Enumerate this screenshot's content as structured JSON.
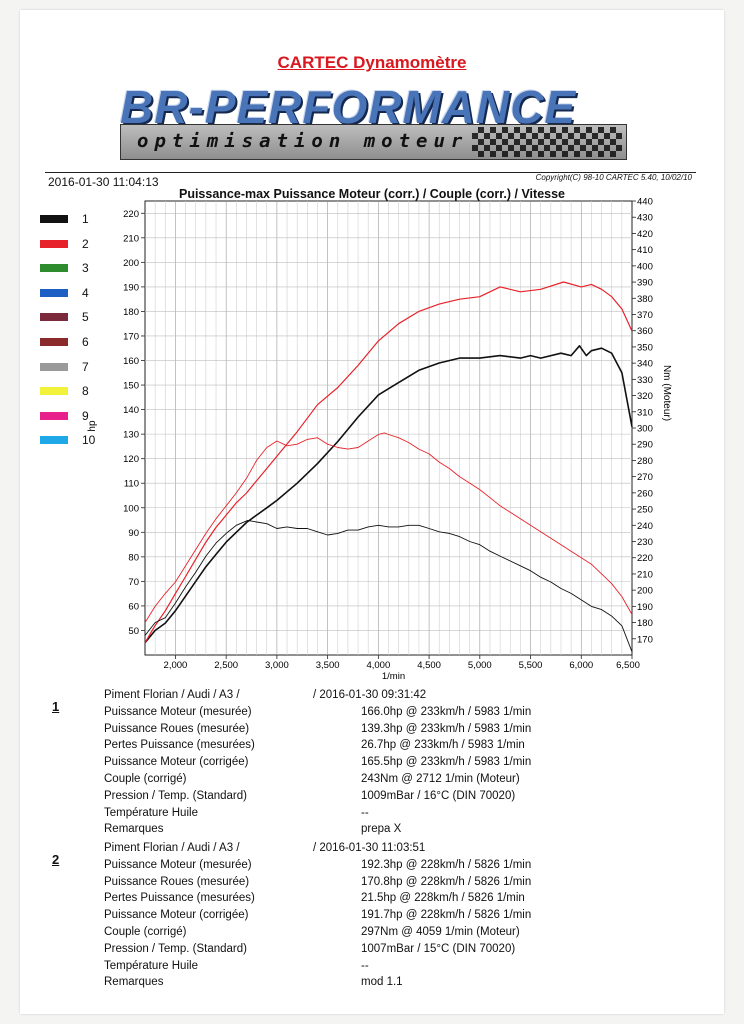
{
  "header": {
    "title": "CARTEC Dynamomètre",
    "logo_brand": "BR-PERFORMANCE",
    "logo_subtitle": "optimisation moteur",
    "timestamp": "2016-01-30 11:04:13",
    "copyright": "Copyright(C) 98-10 CARTEC 5.40, 10/02/10"
  },
  "legend": [
    {
      "label": "1",
      "color": "#111111"
    },
    {
      "label": "2",
      "color": "#e8222a"
    },
    {
      "label": "3",
      "color": "#2e8b2e"
    },
    {
      "label": "4",
      "color": "#1e5fc6"
    },
    {
      "label": "5",
      "color": "#7a2a3a"
    },
    {
      "label": "6",
      "color": "#8b2a2a"
    },
    {
      "label": "7",
      "color": "#9a9a9a"
    },
    {
      "label": "8",
      "color": "#f2f23a"
    },
    {
      "label": "9",
      "color": "#e8208c"
    },
    {
      "label": "10",
      "color": "#1ea8e8"
    }
  ],
  "chart_data": {
    "type": "line",
    "title": "Puissance-max Puissance Moteur (corr.) / Couple (corr.) / Vitesse",
    "xlabel": "1/min",
    "ylabel": "hp",
    "y2label": "Nm (Moteur)",
    "xlim": [
      1700,
      6500
    ],
    "ylim": [
      40,
      225
    ],
    "y2lim": [
      160,
      440
    ],
    "xticks": [
      2000,
      2500,
      3000,
      3500,
      4000,
      4500,
      5000,
      5500,
      6000,
      6500
    ],
    "xtick_labels": [
      "2,000",
      "2,500",
      "3,000",
      "3,500",
      "4,000",
      "4,500",
      "5,000",
      "5,500",
      "6,000",
      "6,500"
    ],
    "yticks": [
      50,
      60,
      70,
      80,
      90,
      100,
      110,
      120,
      130,
      140,
      150,
      160,
      170,
      180,
      190,
      200,
      210,
      220
    ],
    "y2ticks": [
      170,
      180,
      190,
      200,
      210,
      220,
      230,
      240,
      250,
      260,
      270,
      280,
      290,
      300,
      310,
      320,
      330,
      340,
      350,
      360,
      370,
      380,
      390,
      400,
      410,
      420,
      430,
      440
    ],
    "grid": true,
    "series": [
      {
        "name": "1",
        "quantity": "Puissance Moteur (corr.)",
        "axis": "left",
        "color": "#111111",
        "stroke": 1.6,
        "x": [
          1700,
          1800,
          1900,
          2000,
          2100,
          2200,
          2300,
          2400,
          2500,
          2600,
          2700,
          2800,
          2900,
          3000,
          3200,
          3400,
          3600,
          3800,
          4000,
          4200,
          4400,
          4600,
          4800,
          5000,
          5200,
          5400,
          5500,
          5600,
          5800,
          5900,
          5983,
          6050,
          6100,
          6200,
          6300,
          6400,
          6500
        ],
        "y": [
          45,
          50,
          53,
          58,
          64,
          70,
          76,
          81,
          86,
          90,
          94,
          97,
          100,
          103,
          110,
          118,
          127,
          137,
          146,
          151,
          156,
          159,
          161,
          161,
          162,
          161,
          162,
          161,
          163,
          162,
          166,
          162,
          164,
          165,
          163,
          155,
          133
        ]
      },
      {
        "name": "2",
        "quantity": "Puissance Moteur (corr.)",
        "axis": "left",
        "color": "#e8222a",
        "stroke": 1.2,
        "x": [
          1700,
          1800,
          1900,
          2000,
          2100,
          2200,
          2300,
          2400,
          2500,
          2600,
          2700,
          2800,
          2900,
          3000,
          3200,
          3400,
          3600,
          3800,
          4000,
          4200,
          4400,
          4600,
          4800,
          5000,
          5200,
          5400,
          5600,
          5826,
          6000,
          6100,
          6200,
          6300,
          6400,
          6500
        ],
        "y": [
          45,
          52,
          58,
          65,
          72,
          79,
          86,
          92,
          97,
          102,
          106,
          111,
          116,
          121,
          131,
          142,
          149,
          158,
          168,
          175,
          180,
          183,
          185,
          186,
          190,
          188,
          189,
          192,
          190,
          191,
          189,
          186,
          181,
          172
        ]
      },
      {
        "name": "1",
        "quantity": "Couple (corr.)",
        "axis": "right",
        "color": "#111111",
        "stroke": 0.9,
        "x": [
          1700,
          1800,
          1900,
          2000,
          2100,
          2200,
          2300,
          2400,
          2500,
          2600,
          2712,
          2800,
          2900,
          3000,
          3100,
          3200,
          3300,
          3400,
          3500,
          3600,
          3700,
          3800,
          3900,
          4000,
          4100,
          4200,
          4300,
          4400,
          4500,
          4600,
          4700,
          4800,
          4900,
          5000,
          5100,
          5200,
          5300,
          5400,
          5500,
          5600,
          5700,
          5800,
          5900,
          6000,
          6100,
          6200,
          6300,
          6400,
          6500
        ],
        "y": [
          172,
          180,
          183,
          192,
          202,
          211,
          221,
          229,
          235,
          240,
          243,
          242,
          241,
          238,
          239,
          238,
          238,
          236,
          234,
          235,
          237,
          237,
          239,
          240,
          239,
          239,
          240,
          240,
          238,
          236,
          235,
          233,
          230,
          228,
          224,
          221,
          218,
          215,
          212,
          208,
          205,
          201,
          198,
          194,
          190,
          188,
          184,
          178,
          162
        ]
      },
      {
        "name": "2",
        "quantity": "Couple (corr.)",
        "axis": "right",
        "color": "#e8222a",
        "stroke": 0.9,
        "x": [
          1700,
          1800,
          1900,
          2000,
          2100,
          2200,
          2300,
          2400,
          2500,
          2600,
          2700,
          2800,
          2900,
          3000,
          3100,
          3200,
          3300,
          3400,
          3500,
          3600,
          3700,
          3800,
          3900,
          4000,
          4059,
          4100,
          4200,
          4300,
          4400,
          4500,
          4600,
          4700,
          4800,
          4900,
          5000,
          5100,
          5200,
          5300,
          5400,
          5500,
          5600,
          5700,
          5800,
          5900,
          6000,
          6100,
          6200,
          6300,
          6400,
          6500
        ],
        "y": [
          180,
          190,
          198,
          205,
          215,
          225,
          235,
          244,
          252,
          260,
          269,
          280,
          288,
          292,
          289,
          290,
          293,
          294,
          290,
          288,
          287,
          288,
          292,
          296,
          297,
          296,
          294,
          291,
          287,
          284,
          279,
          275,
          270,
          266,
          262,
          257,
          252,
          248,
          244,
          240,
          236,
          232,
          228,
          224,
          220,
          216,
          210,
          204,
          196,
          185
        ]
      }
    ]
  },
  "results": [
    {
      "index": "1",
      "header": "Piment Florian / Audi / A3 /",
      "date": "/ 2016-01-30 09:31:42",
      "rows": [
        {
          "label": "Puissance Moteur (mesurée)",
          "value": "166.0hp @ 233km/h / 5983 1/min"
        },
        {
          "label": "Puissance Roues (mesurée)",
          "value": "139.3hp @ 233km/h / 5983 1/min"
        },
        {
          "label": "Pertes Puissance (mesurées)",
          "value": "26.7hp @ 233km/h / 5983 1/min"
        },
        {
          "label": "Puissance Moteur (corrigée)",
          "value": "165.5hp @ 233km/h / 5983 1/min"
        },
        {
          "label": "Couple (corrigé)",
          "value": "243Nm @ 2712 1/min (Moteur)"
        },
        {
          "label": "Pression / Temp. (Standard)",
          "value": "1009mBar / 16°C   (DIN 70020)"
        },
        {
          "label": "Température Huile",
          "value": "--"
        },
        {
          "label": "Remarques",
          "value": "prepa X"
        }
      ]
    },
    {
      "index": "2",
      "header": "Piment Florian / Audi / A3 /",
      "date": "/ 2016-01-30 11:03:51",
      "rows": [
        {
          "label": "Puissance Moteur (mesurée)",
          "value": "192.3hp @ 228km/h / 5826 1/min"
        },
        {
          "label": "Puissance Roues (mesurée)",
          "value": "170.8hp @ 228km/h / 5826 1/min"
        },
        {
          "label": "Pertes Puissance (mesurées)",
          "value": "21.5hp @ 228km/h / 5826 1/min"
        },
        {
          "label": "Puissance Moteur (corrigée)",
          "value": "191.7hp @ 228km/h / 5826 1/min"
        },
        {
          "label": "Couple (corrigé)",
          "value": "297Nm @ 4059 1/min (Moteur)"
        },
        {
          "label": "Pression / Temp. (Standard)",
          "value": "1007mBar / 15°C   (DIN 70020)"
        },
        {
          "label": "Température Huile",
          "value": "--"
        },
        {
          "label": "Remarques",
          "value": "mod 1.1"
        }
      ]
    }
  ]
}
